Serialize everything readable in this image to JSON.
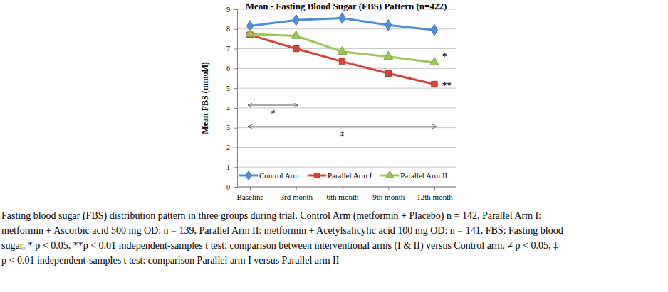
{
  "chart_data": {
    "type": "line",
    "title": "Mean - Fasting Blood Sugar (FBS) Pattern (n=422)",
    "y_label": "Mean FBS (mmol/l)",
    "categories": [
      "Baseline",
      "3rd month",
      "6th month",
      "9th month",
      "12th month"
    ],
    "series": [
      {
        "name": "Control Arm",
        "color": "#4f8fd8",
        "marker": "diamond",
        "values": [
          8.15,
          8.45,
          8.55,
          8.2,
          7.95
        ]
      },
      {
        "name": "Parallel Arm I",
        "color": "#d7433b",
        "marker": "square",
        "values": [
          7.7,
          7.0,
          6.35,
          5.75,
          5.2
        ]
      },
      {
        "name": "Parallel Arm II",
        "color": "#9dc65a",
        "marker": "triangle",
        "values": [
          7.75,
          7.65,
          6.85,
          6.6,
          6.3
        ]
      }
    ],
    "ylim": [
      0,
      9
    ],
    "yticks": [
      0,
      1,
      2,
      3,
      4,
      5,
      6,
      7,
      8,
      9
    ],
    "grid": true,
    "legend": "bottom",
    "annotations": [
      {
        "text": "*",
        "series": "Parallel Arm II"
      },
      {
        "text": "**",
        "series": "Parallel Arm I"
      },
      {
        "text": "≠",
        "from": "Baseline",
        "to": "3rd month"
      },
      {
        "text": "‡",
        "from": "Baseline",
        "to": "12th month"
      }
    ],
    "caption": [
      "Fasting blood sugar (FBS) distribution pattern in three groups during trial. Control Arm (metformin + Placebo) n = 142, Parallel Arm I:",
      "metformin + Ascorbic acid 500 mg OD: n = 139, Parallel Arm II: metformin + Acetylsalicylic acid 100 mg OD: n = 141, FBS: Fasting blood",
      "sugar, * p < 0.05, **p < 0.01 independent-samples t test: comparison between interventional arms (I & II) versus Control arm. ≠ p < 0.05, ‡",
      "p < 0.01 independent-samples t test: comparison Parallel arm I versus Parallel arm II"
    ]
  }
}
